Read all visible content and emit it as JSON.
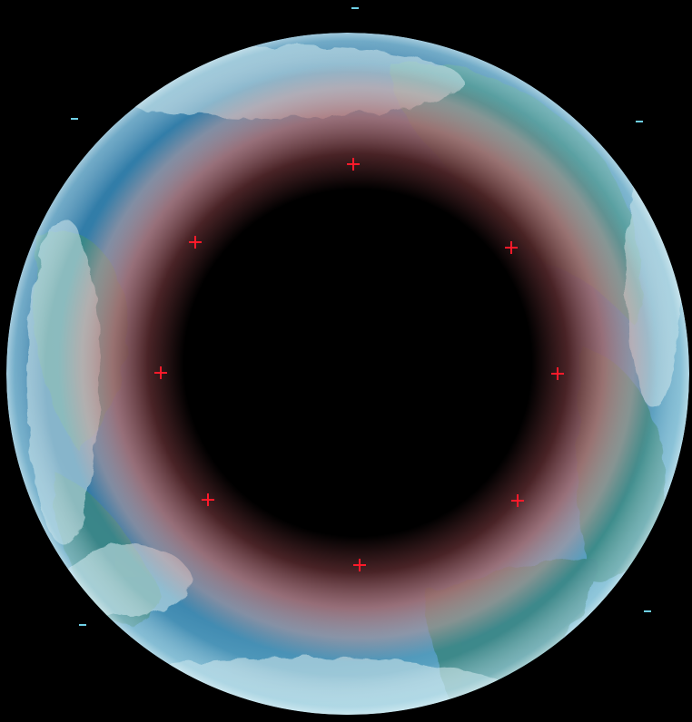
{
  "colors": {
    "space": "#000000",
    "ocean_deep": "#2a6f9a",
    "ocean_mid": "#3f8db6",
    "ocean_light": "#6fb6cf",
    "cloud": "#cfe6ea",
    "teal": "#3e8f8c",
    "glow_pink": "#d98c8a",
    "glow_dark": "#4a1e1f",
    "marker": "#ff1a2a",
    "edge_tick": "#6fd0e6"
  },
  "icons": {
    "marker": "red-crosshair-icon",
    "edge_tick": "cyan-dash-icon"
  },
  "markers_count": 8,
  "edge_ticks_count": 5
}
